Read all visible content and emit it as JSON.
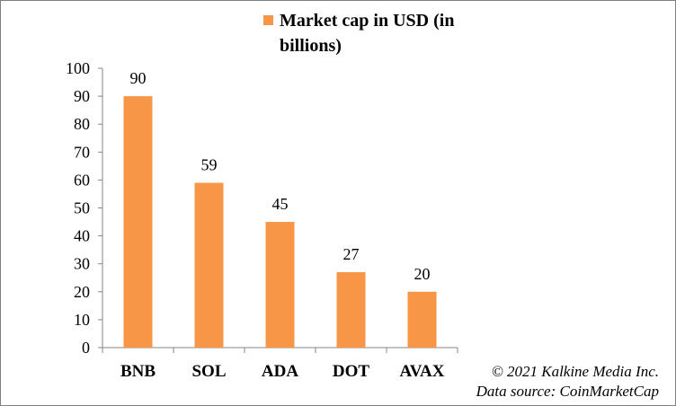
{
  "chart_data": {
    "type": "bar",
    "categories": [
      "BNB",
      "SOL",
      "ADA",
      "DOT",
      "AVAX"
    ],
    "series": [
      {
        "name": "Market cap in USD (in billions)",
        "values": [
          90,
          59,
          45,
          27,
          20
        ]
      }
    ],
    "data_labels": [
      "90",
      "59",
      "45",
      "27",
      "20"
    ],
    "ylim": [
      0,
      100
    ],
    "yticks": [
      0,
      10,
      20,
      30,
      40,
      50,
      60,
      70,
      80,
      90,
      100
    ],
    "legend_position": "top",
    "grid": false,
    "bar_color": "#f79646"
  },
  "credits": {
    "copyright": "© 2021 Kalkine Media Inc.",
    "source": "Data source:  CoinMarketCap"
  }
}
